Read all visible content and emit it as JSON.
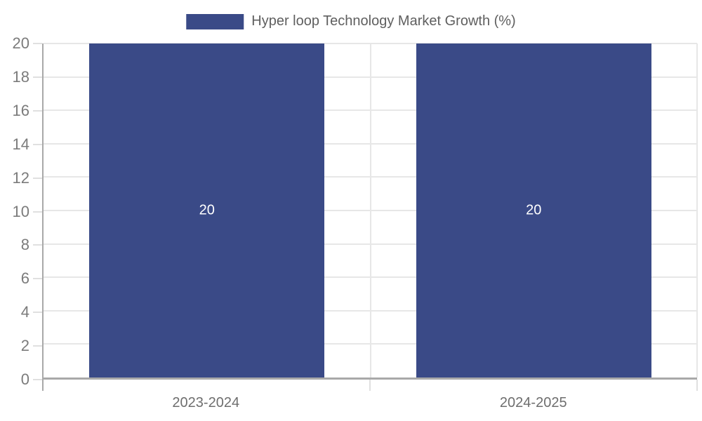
{
  "chart_data": {
    "type": "bar",
    "title": "",
    "categories": [
      "2023-2024",
      "2024-2025"
    ],
    "series": [
      {
        "name": "Hyper loop Technology Market Growth (%)",
        "values": [
          20,
          20
        ],
        "color": "#3A4A87"
      }
    ],
    "value_labels": [
      "20",
      "20"
    ],
    "xlabel": "",
    "ylabel": "",
    "ylim": [
      0,
      20
    ],
    "ytick_step": 2,
    "grid": true,
    "legend_position": "top"
  },
  "legend": {
    "label": "Hyper loop Technology Market Growth (%)",
    "swatch_color": "#3A4A87"
  },
  "colors": {
    "bar": "#3A4A87",
    "grid": "#e7e7e7",
    "axis": "#a9a9a9",
    "tick_light": "#e0e0e0",
    "y_label_text": "#7b7b7b",
    "x_label_text": "#6e6e6e",
    "legend_text": "#5f5f5f",
    "value_label_text": "#ffffff",
    "background": "#ffffff"
  }
}
